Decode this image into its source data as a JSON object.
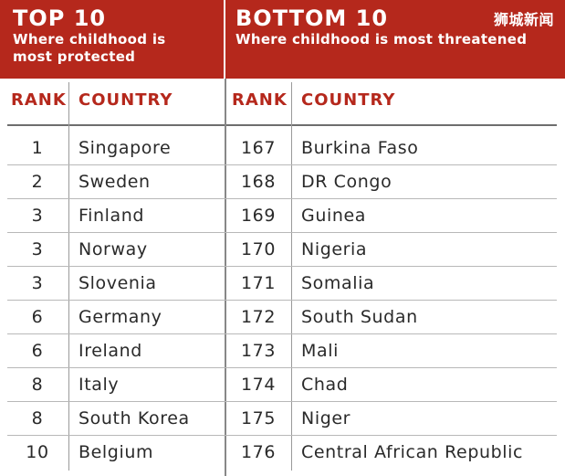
{
  "header": {
    "top": {
      "title": "TOP 10",
      "subtitle_line1": "Where childhood is",
      "subtitle_line2": "most protected"
    },
    "bottom": {
      "title": "BOTTOM 10",
      "subtitle": "Where childhood is most threatened"
    },
    "watermark": "狮城新闻"
  },
  "columns": {
    "left_rank": "RANK",
    "left_country": "COUNTRY",
    "right_rank": "RANK",
    "right_country": "COUNTRY"
  },
  "top10": [
    {
      "rank": "1",
      "country": "Singapore"
    },
    {
      "rank": "2",
      "country": "Sweden"
    },
    {
      "rank": "3",
      "country": "Finland"
    },
    {
      "rank": "3",
      "country": "Norway"
    },
    {
      "rank": "3",
      "country": "Slovenia"
    },
    {
      "rank": "6",
      "country": "Germany"
    },
    {
      "rank": "6",
      "country": "Ireland"
    },
    {
      "rank": "8",
      "country": "Italy"
    },
    {
      "rank": "8",
      "country": "South Korea"
    },
    {
      "rank": "10",
      "country": "Belgium"
    }
  ],
  "bottom10": [
    {
      "rank": "167",
      "country": "Burkina Faso"
    },
    {
      "rank": "168",
      "country": "DR Congo"
    },
    {
      "rank": "169",
      "country": "Guinea"
    },
    {
      "rank": "170",
      "country": "Nigeria"
    },
    {
      "rank": "171",
      "country": "Somalia"
    },
    {
      "rank": "172",
      "country": "South Sudan"
    },
    {
      "rank": "173",
      "country": "Mali"
    },
    {
      "rank": "174",
      "country": "Chad"
    },
    {
      "rank": "175",
      "country": "Niger"
    },
    {
      "rank": "176",
      "country": "Central African Republic"
    }
  ],
  "colors": {
    "accent": "#b5281c",
    "text": "#2a2a2a",
    "rule": "#b8b8b8"
  }
}
